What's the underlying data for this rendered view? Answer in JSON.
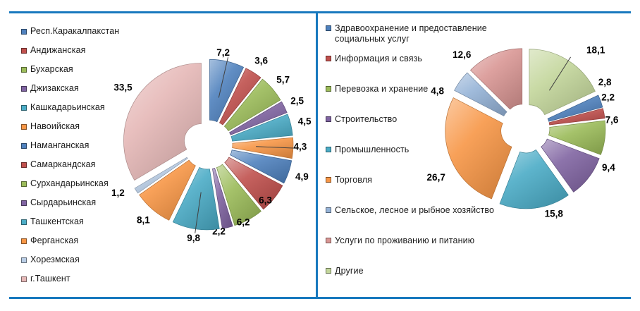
{
  "page": {
    "background": "#FFFFFF",
    "rule_color": "#1879BE"
  },
  "chart_data": [
    {
      "type": "pie",
      "position": "left",
      "style": {
        "donut": true,
        "exploded": true,
        "labels": "outside",
        "legend_position": "left",
        "grid": false
      },
      "value_format": "comma-decimal",
      "slices": [
        {
          "label": "Респ.Каракалпакстан",
          "value": 7.2,
          "color": "#4F81BD",
          "leader": true
        },
        {
          "label": "Андижанская",
          "value": 3.6,
          "color": "#C0504D",
          "leader": false
        },
        {
          "label": "Бухарская",
          "value": 5.7,
          "color": "#9BBB59",
          "leader": false
        },
        {
          "label": "Джизакская",
          "value": 2.5,
          "color": "#8064A2",
          "leader": false
        },
        {
          "label": "Кашкадарьинская",
          "value": 4.5,
          "color": "#4BACC6",
          "leader": false
        },
        {
          "label": "Навоийская",
          "value": 4.3,
          "color": "#F79646",
          "leader": true
        },
        {
          "label": "Наманганская",
          "value": 4.9,
          "color": "#4F81BD",
          "leader": false
        },
        {
          "label": "Самаркандская",
          "value": 6.3,
          "color": "#C0504D",
          "leader": false
        },
        {
          "label": "Сурхандарьинская",
          "value": 6.2,
          "color": "#9BBB59",
          "leader": false
        },
        {
          "label": "Сырдарьинская",
          "value": 2.2,
          "color": "#8064A2",
          "leader": false
        },
        {
          "label": "Ташкентская",
          "value": 9.8,
          "color": "#4BACC6",
          "leader": true
        },
        {
          "label": "Ферганская",
          "value": 8.1,
          "color": "#F79646",
          "leader": false
        },
        {
          "label": "Хорезмская",
          "value": 1.2,
          "color": "#B9CDE5",
          "leader": false
        },
        {
          "label": "г.Ташкент",
          "value": 33.5,
          "color": "#E5B8B7",
          "leader": false
        }
      ]
    },
    {
      "type": "pie",
      "position": "right",
      "style": {
        "donut": true,
        "exploded": true,
        "labels": "outside",
        "legend_position": "left",
        "grid": false
      },
      "value_format": "comma-decimal",
      "slices": [
        {
          "label": "Здравоохранение и предоставление социальных услуг",
          "value": 2.8,
          "color": "#4F81BD",
          "leader": false
        },
        {
          "label": "Информация и связь",
          "value": 2.2,
          "color": "#C0504D",
          "leader": false
        },
        {
          "label": "Перевозка и хранение",
          "value": 7.6,
          "color": "#9BBB59",
          "leader": false
        },
        {
          "label": "Строительство",
          "value": 9.4,
          "color": "#8064A2",
          "leader": false
        },
        {
          "label": "Промышленность",
          "value": 15.8,
          "color": "#4BACC6",
          "leader": false
        },
        {
          "label": "Торговля",
          "value": 26.7,
          "color": "#F79646",
          "leader": false
        },
        {
          "label": "Сельское, лесное и рыбное хозяйство",
          "value": 4.8,
          "color": "#95B3D7",
          "leader": false
        },
        {
          "label": "Услуги по проживанию и питанию",
          "value": 12.6,
          "color": "#D99694",
          "leader": false
        },
        {
          "label": "Другие",
          "value": 18.1,
          "color": "#C3D69B",
          "leader": true
        }
      ]
    }
  ]
}
